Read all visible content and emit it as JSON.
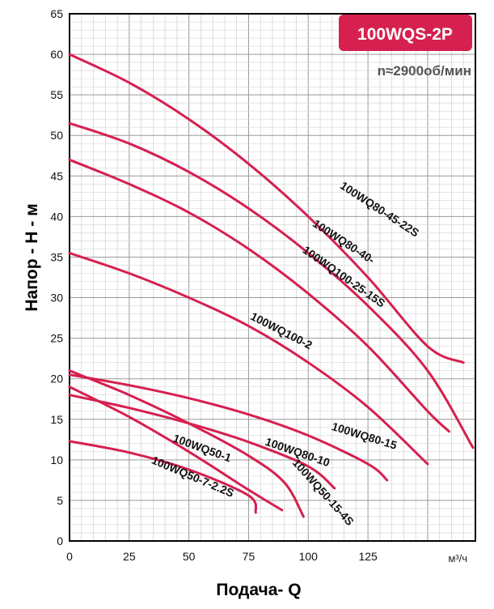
{
  "chart_data": {
    "type": "line",
    "badge": "100WQS-2P",
    "speed_note": "n≈2900об/мин",
    "xlabel": "Подача- Q",
    "ylabel": "Напор - Н - м",
    "x_unit": "м³/ч",
    "xlim": [
      0,
      170
    ],
    "ylim": [
      0,
      65
    ],
    "x_ticks": [
      0,
      25,
      50,
      75,
      100,
      125
    ],
    "y_ticks": [
      0,
      5,
      10,
      15,
      20,
      25,
      30,
      35,
      40,
      45,
      50,
      55,
      60,
      65
    ],
    "grid": true,
    "line_color": "#d6204f",
    "badge_color": "#d6204f",
    "series": [
      {
        "name": "100WQ80-45-22S",
        "x": [
          0,
          25,
          50,
          75,
          100,
          125,
          150,
          165
        ],
        "y": [
          60,
          56.5,
          52,
          46.5,
          40,
          32.5,
          24,
          22
        ]
      },
      {
        "name": "100WQ80-40-",
        "x": [
          0,
          25,
          50,
          75,
          100,
          125,
          150,
          169
        ],
        "y": [
          51.5,
          49,
          45.5,
          41,
          35.5,
          29,
          21,
          11.5
        ]
      },
      {
        "name": "100WQ100-25-15S",
        "x": [
          0,
          25,
          50,
          75,
          100,
          125,
          150,
          159
        ],
        "y": [
          47,
          44,
          40.5,
          36,
          30.5,
          24,
          16,
          13.5
        ]
      },
      {
        "name": "100WQ100-2",
        "x": [
          0,
          25,
          50,
          75,
          100,
          125,
          150
        ],
        "y": [
          35.5,
          33,
          30,
          26.5,
          22,
          16.5,
          9.5
        ]
      },
      {
        "name": "100WQ80-15",
        "x": [
          0,
          25,
          50,
          75,
          100,
          125,
          133
        ],
        "y": [
          20.5,
          19.2,
          17.6,
          15.6,
          13,
          9.5,
          7.5
        ]
      },
      {
        "name": "100WQ80-10",
        "x": [
          0,
          25,
          50,
          75,
          100,
          111
        ],
        "y": [
          18,
          16.4,
          14.5,
          12.2,
          9.2,
          6.5
        ]
      },
      {
        "name": "100WQ50-15-4S",
        "x": [
          0,
          25,
          50,
          75,
          90,
          98
        ],
        "y": [
          21,
          18,
          14.5,
          10.5,
          7.2,
          3
        ]
      },
      {
        "name": "100WQ50-1",
        "x": [
          0,
          25,
          50,
          75,
          89
        ],
        "y": [
          19,
          15.3,
          11,
          6.3,
          3.8
        ]
      },
      {
        "name": "100WQ50-7-2.2S",
        "x": [
          0,
          25,
          50,
          75,
          78
        ],
        "y": [
          12.3,
          10.9,
          8.8,
          5.6,
          3.5
        ]
      }
    ]
  }
}
